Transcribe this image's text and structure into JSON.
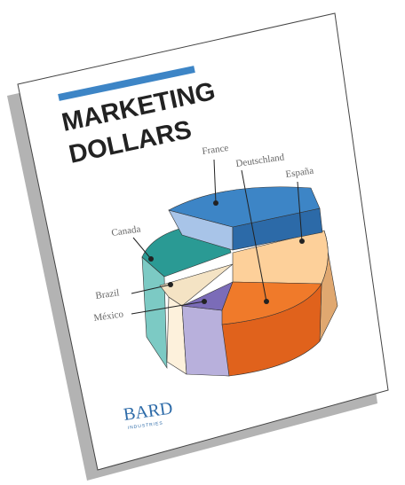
{
  "cover": {
    "title_lines": [
      "MARKETING",
      "DOLLARS"
    ],
    "labels": [
      "France",
      "Deutschland",
      "España",
      "Canada",
      "Brazil",
      "México"
    ],
    "logo": {
      "name": "BARD",
      "tagline": "INDUSTRIES"
    }
  }
}
